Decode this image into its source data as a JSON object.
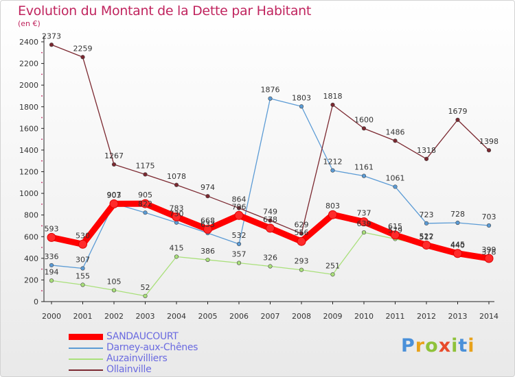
{
  "chart_data": {
    "type": "line",
    "title": "Evolution du Montant de la Dette par Habitant",
    "subtitle": "(en €)",
    "x": [
      "2000",
      "2001",
      "2002",
      "2003",
      "2004",
      "2005",
      "2006",
      "2007",
      "2008",
      "2009",
      "2010",
      "2011",
      "2012",
      "2013",
      "2014"
    ],
    "ylim": [
      0,
      2400
    ],
    "yticks": [
      0,
      200,
      400,
      600,
      800,
      1000,
      1200,
      1400,
      1600,
      1800,
      2000,
      2200,
      2400
    ],
    "grid": false,
    "legend_position": "bottom-left",
    "series": [
      {
        "name": "SANDAUCOURT",
        "color": "#ff0000",
        "emphasis": true,
        "values": [
          593,
          530,
          903,
          905,
          783,
          668,
          796,
          678,
          556,
          803,
          737,
          615,
          522,
          445,
          399
        ]
      },
      {
        "name": "Darney-aux-Chênes",
        "color": "#5b9bd5",
        "values": [
          336,
          307,
          907,
          822,
          730,
          633,
          532,
          1876,
          1803,
          1212,
          1161,
          1061,
          723,
          728,
          703
        ]
      },
      {
        "name": "Auzainvilliers",
        "color": "#a9e07a",
        "values": [
          194,
          155,
          105,
          52,
          415,
          386,
          357,
          326,
          293,
          251,
          639,
          579,
          517,
          440,
          378
        ]
      },
      {
        "name": "Ollainville",
        "color": "#7b2830",
        "values": [
          2373,
          2259,
          1267,
          1175,
          1078,
          974,
          864,
          749,
          629,
          1818,
          1600,
          1486,
          1318,
          1679,
          1398
        ]
      }
    ]
  },
  "brand": {
    "letters": [
      "P",
      "r",
      "o",
      "x",
      "i",
      "t",
      "i"
    ],
    "colors": [
      "#4a90d9",
      "#e8a21b",
      "#8fc23a",
      "#e84b2b",
      "#8fc23a",
      "#4a90d9",
      "#e8a21b"
    ]
  }
}
